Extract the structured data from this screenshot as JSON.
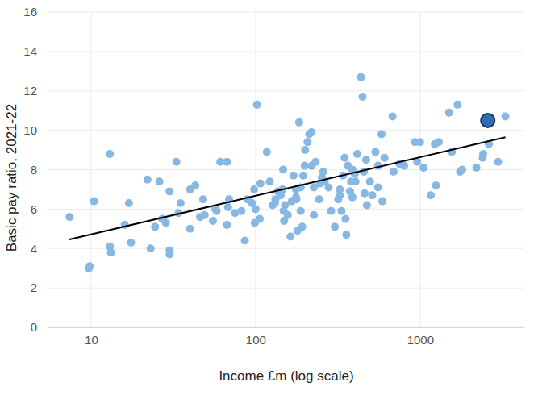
{
  "chart_data": {
    "type": "scatter",
    "x_label": "Income £m (log scale)",
    "y_label": "Basic pay ratio, 2021-22",
    "log": "x",
    "grid": true,
    "xlim": [
      5.5,
      4300
    ],
    "ylim": [
      0,
      16
    ],
    "xticks": [
      10,
      100,
      1000
    ],
    "yticks": [
      0,
      2,
      4,
      6,
      8,
      10,
      12,
      14,
      16
    ],
    "series": [
      {
        "type": "scatter",
        "color": "#87b8e4",
        "marker": "circle",
        "x": [
          7.4,
          9.7,
          9.8,
          10.4,
          13,
          13,
          13.2,
          16,
          17,
          17.5,
          22,
          23,
          24.5,
          26,
          27,
          28.5,
          30,
          30,
          30,
          33,
          34,
          35,
          40,
          40,
          43,
          46,
          48,
          49,
          55,
          57,
          58,
          61,
          67,
          67,
          68,
          69,
          75,
          82,
          86,
          89,
          95,
          98,
          99,
          100,
          102,
          107,
          106,
          117,
          122,
          127,
          131,
          132,
          137,
          142,
          146,
          147,
          148,
          151,
          149,
          157,
          163,
          166,
          170,
          176,
          176,
          177,
          180,
          184,
          188,
          188,
          192,
          195,
          200,
          199,
          207,
          212,
          219,
          219,
          226,
          232,
          226,
          243,
          246,
          253,
          258,
          263,
          278,
          288,
          303,
          318,
          325,
          325,
          333,
          340,
          348,
          352,
          356,
          364,
          375,
          380,
          388,
          388,
          400,
          405,
          415,
          437,
          447,
          455,
          460,
          470,
          475,
          496,
          512,
          535,
          555,
          555,
          583,
          590,
          608,
          690,
          750,
          800,
          930,
          960,
          1000,
          1050,
          1160,
          1230,
          1300,
          1500,
          1560,
          1690,
          1750,
          1800,
          2200,
          2400,
          2420,
          2620,
          2980,
          3300,
          1250,
          680
        ],
        "values": [
          5.6,
          3.0,
          3.1,
          6.4,
          8.8,
          4.1,
          3.8,
          5.2,
          6.3,
          4.3,
          7.5,
          4.0,
          5.1,
          7.4,
          5.5,
          5.3,
          6.9,
          3.9,
          3.7,
          8.4,
          5.8,
          6.3,
          5.0,
          7.0,
          7.2,
          5.6,
          6.5,
          5.7,
          5.4,
          6.0,
          5.9,
          8.4,
          8.4,
          5.2,
          6.1,
          6.5,
          5.8,
          5.9,
          4.4,
          6.5,
          6.3,
          7.0,
          5.3,
          6.0,
          11.3,
          7.3,
          5.5,
          8.9,
          7.4,
          6.2,
          6.3,
          6.5,
          6.9,
          6.7,
          7.0,
          8.0,
          5.9,
          6.2,
          5.4,
          5.7,
          4.6,
          6.4,
          7.7,
          6.6,
          7.0,
          6.5,
          4.9,
          10.4,
          7.1,
          5.9,
          5.1,
          7.7,
          9.0,
          8.2,
          9.4,
          9.8,
          9.9,
          8.2,
          7.1,
          8.4,
          5.7,
          6.5,
          7.3,
          7.6,
          7.9,
          7.4,
          7.1,
          5.9,
          5.1,
          6.5,
          6.7,
          7.0,
          5.9,
          7.7,
          8.6,
          5.5,
          4.7,
          8.2,
          6.9,
          7.4,
          6.6,
          8.0,
          7.8,
          7.4,
          8.8,
          12.7,
          11.7,
          7.9,
          6.8,
          8.5,
          6.2,
          7.4,
          6.7,
          8.9,
          7.1,
          8.2,
          9.8,
          6.4,
          8.6,
          7.9,
          8.3,
          8.2,
          9.4,
          8.4,
          9.4,
          8.1,
          6.7,
          9.3,
          9.4,
          10.9,
          8.9,
          11.3,
          7.9,
          8.0,
          8.1,
          8.6,
          8.8,
          9.3,
          8.4,
          10.7,
          7.2,
          10.7
        ]
      },
      {
        "type": "line",
        "color": "#000000",
        "line_style": "solid",
        "x": [
          7.3,
          3300
        ],
        "values": [
          4.45,
          9.65
        ]
      },
      {
        "type": "scatter",
        "color": "#2e6db3",
        "marker": "large",
        "x": [
          2580
        ],
        "values": [
          10.5
        ]
      }
    ]
  }
}
